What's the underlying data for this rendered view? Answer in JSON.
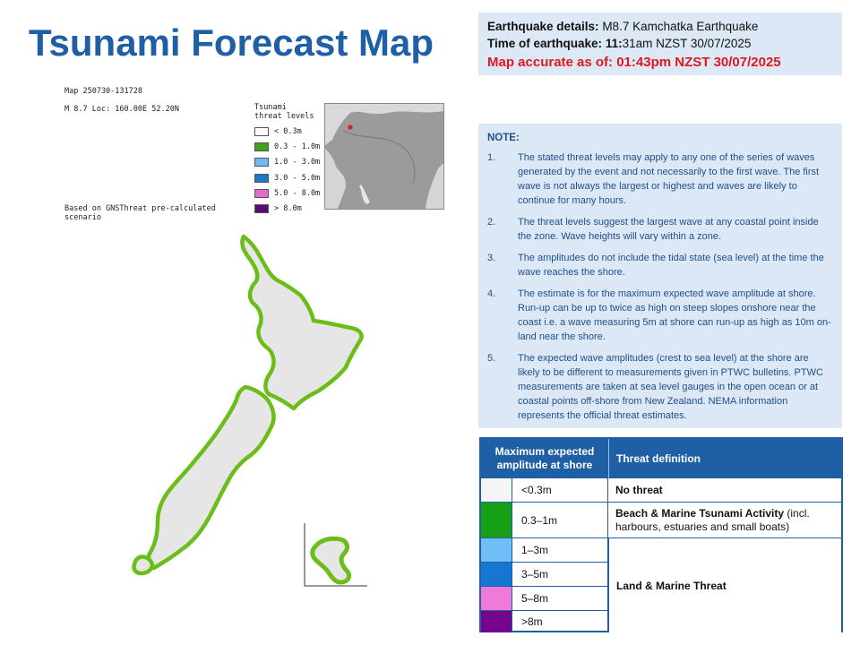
{
  "title": "Tsunami Forecast Map",
  "details": {
    "eq_label": "Earthquake details:",
    "eq_value": "M8.7 Kamchatka Earthquake",
    "time_label": "Time of earthquake:",
    "time_hour": "11:",
    "time_rest": "31am NZST 30/07/2025",
    "accurate": "Map accurate as of: 01:43pm NZST 30/07/2025",
    "accent_color": "#e0181b"
  },
  "map": {
    "map_id": "Map 250730-131728",
    "loc": "M 8.7 Loc: 160.00E 52.20N",
    "based_on": "Based on GNSThreat pre-calculated scenario",
    "legend_title_1": "Tsunami",
    "legend_title_2": "threat levels",
    "legend": [
      {
        "label": "< 0.3m",
        "color": "#ffffff"
      },
      {
        "label": "0.3 - 1.0m",
        "color": "#3aa318"
      },
      {
        "label": "1.0 - 3.0m",
        "color": "#6fb9f0"
      },
      {
        "label": "3.0 - 5.0m",
        "color": "#1e78c8"
      },
      {
        "label": "5.0 - 8.0m",
        "color": "#e36ccf"
      },
      {
        "label": "> 8.0m",
        "color": "#5a0a78"
      }
    ],
    "coast_color": "#6bbd1a",
    "land_color": "#e6e6e6"
  },
  "note": {
    "head": "NOTE:",
    "items": [
      {
        "num": "1.",
        "text": "The stated threat levels may apply to any one of the series of waves generated by the event and not necessarily to the first wave. The first wave is not always the largest or highest and waves are likely to continue for many hours."
      },
      {
        "num": "2.",
        "text": "The threat levels suggest the largest wave at any coastal point inside the zone. Wave heights will vary within a zone."
      },
      {
        "num": "3.",
        "text": "The amplitudes do not include the tidal state (sea level) at the time the wave reaches the shore."
      },
      {
        "num": "4.",
        "text": "The estimate is for the maximum expected wave amplitude at shore. Run-up can be up to twice as high on steep slopes onshore near the coast i.e. a wave measuring 5m at shore can run-up as high as 10m on-land near the shore."
      },
      {
        "num": "5.",
        "text": "The expected wave amplitudes (crest to sea level) at the shore are likely to be different to measurements given in PTWC bulletins. PTWC measurements are taken at sea level gauges in the open ocean or at coastal points off-shore from New Zealand. NEMA information represents the official threat estimates."
      }
    ]
  },
  "threat_table": {
    "col1": "Maximum expected amplitude at shore",
    "col2": "Threat definition",
    "rows": [
      {
        "amp": "<0.3m",
        "color": "#f5f5f5"
      },
      {
        "amp": "0.3–1m",
        "color": "#16a016"
      },
      {
        "amp": "1–3m",
        "color": "#6fbef5"
      },
      {
        "amp": "3–5m",
        "color": "#1577d2"
      },
      {
        "amp": "5–8m",
        "color": "#f07ad8"
      },
      {
        "amp": ">8m",
        "color": "#74068e"
      }
    ],
    "def_none": "No threat",
    "def_beach_bold": "Beach & Marine Tsunami Activity",
    "def_beach_rest": " (incl. harbours, estuaries and small boats)",
    "def_land": "Land & Marine Threat"
  }
}
